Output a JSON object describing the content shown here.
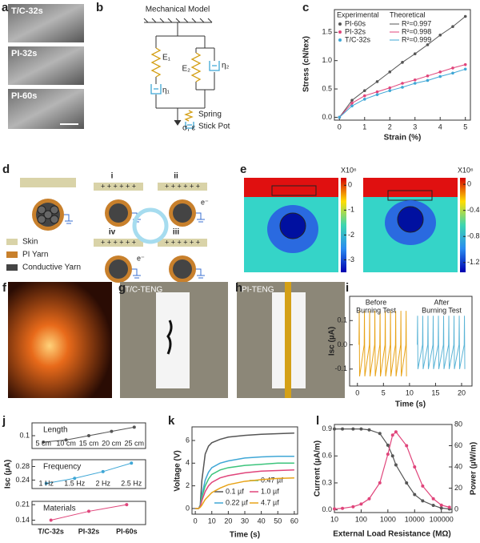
{
  "panel_labels": [
    "a",
    "b",
    "c",
    "d",
    "e",
    "f",
    "g",
    "h",
    "i",
    "j",
    "k",
    "l"
  ],
  "panel_a": {
    "labels": [
      "T/C-32s",
      "PI-32s",
      "PI-60s"
    ]
  },
  "panel_b": {
    "title": "Mechanical Model",
    "e1": "E₁",
    "e2": "E₂",
    "eta1": "η₁",
    "eta2": "η₂",
    "output": "σ, ε",
    "legend": [
      "Spring",
      "Stick Pot"
    ]
  },
  "panel_d": {
    "stages": [
      "i",
      "ii",
      "iii",
      "iv"
    ],
    "charges": "+ + + + + +",
    "electron": "e⁻",
    "legend": [
      "Skin",
      "PI Yarn",
      "Conductive Yarn"
    ]
  },
  "panel_e": {
    "colorbars": [
      {
        "unit": "X10⁶",
        "lim": [
          -3.5,
          0.3
        ],
        "ticks": [
          0,
          -1,
          -2,
          -3
        ]
      },
      {
        "unit": "X10⁶",
        "lim": [
          -1.35,
          0.1
        ],
        "ticks": [
          0,
          -0.4,
          -0.8,
          -1.2
        ]
      }
    ]
  },
  "panel_g": {
    "label": "T/C-TENG"
  },
  "panel_h": {
    "label": "PI-TENG"
  },
  "chart_data": [
    {
      "type": "line",
      "xlabel": "Strain (%)",
      "ylabel": "Stress (cN/tex)",
      "legend_titles": [
        "Experimental",
        "Theoretical"
      ],
      "x": [
        0,
        0.5,
        1,
        1.5,
        2,
        2.5,
        3,
        3.5,
        4,
        4.5,
        5
      ],
      "series": [
        {
          "name": "PI-60s",
          "color": "#555555",
          "fit_label": "R²=0.997",
          "values": [
            0,
            0.3,
            0.47,
            0.63,
            0.8,
            0.97,
            1.12,
            1.28,
            1.45,
            1.6,
            1.78
          ]
        },
        {
          "name": "PI-32s",
          "color": "#e0457b",
          "fit_label": "R²=0.998",
          "values": [
            0,
            0.25,
            0.38,
            0.45,
            0.52,
            0.6,
            0.66,
            0.73,
            0.8,
            0.87,
            0.93
          ]
        },
        {
          "name": "T/C-32s",
          "color": "#3fa7d6",
          "fit_label": "R²=0.999",
          "values": [
            0,
            0.2,
            0.32,
            0.4,
            0.47,
            0.53,
            0.6,
            0.65,
            0.72,
            0.78,
            0.85
          ]
        }
      ],
      "xlim": [
        -0.2,
        5.2
      ],
      "ylim": [
        -0.05,
        1.9
      ],
      "xticks": [
        0,
        1,
        2,
        3,
        4,
        5
      ],
      "yticks": [
        {
          "value": 0,
          "label": "0.0"
        },
        0.5,
        {
          "value": 1,
          "label": "1.0"
        },
        1.5
      ]
    },
    {
      "type": "line",
      "xlabel": "Time (s)",
      "ylabel": "Isc (µA)",
      "annotations": [
        "Before",
        "Burning Test",
        "After",
        "Burning Test"
      ],
      "series": [
        {
          "color": "#e8a317",
          "x": [
            0.3,
            0.35,
            0.42,
            1.3,
            1.35,
            1.42,
            2.3,
            2.35,
            2.42,
            3.3,
            3.35,
            3.42,
            4.3,
            4.35,
            4.42,
            5.3,
            5.35,
            5.42,
            6.3,
            6.35,
            6.42,
            7.3,
            7.35,
            7.42,
            8.3,
            8.35,
            8.42,
            9.3,
            9.35,
            9.42
          ],
          "values": [
            0,
            0.14,
            -0.13,
            0,
            0.14,
            -0.13,
            0,
            0.14,
            -0.13,
            0,
            0.14,
            -0.13,
            0,
            0.14,
            -0.13,
            0,
            0.14,
            -0.13,
            0,
            0.14,
            -0.13,
            0,
            0.14,
            -0.13,
            0,
            0.14,
            -0.13,
            0,
            0.14,
            -0.13
          ]
        },
        {
          "color": "#5ab4d6",
          "x": [
            11.5,
            11.55,
            11.62,
            12.5,
            12.55,
            12.62,
            13.5,
            13.55,
            13.62,
            14.5,
            14.55,
            14.62,
            15.5,
            15.55,
            15.62,
            16.5,
            16.55,
            16.62,
            17.5,
            17.55,
            17.62,
            18.5,
            18.55,
            18.62,
            19.5,
            19.55,
            19.62,
            20.5,
            20.55,
            20.62
          ],
          "values": [
            0,
            0.12,
            -0.1,
            0,
            0.12,
            -0.1,
            0,
            0.12,
            -0.1,
            0,
            0.12,
            -0.1,
            0,
            0.12,
            -0.1,
            0,
            0.12,
            -0.1,
            0,
            0.12,
            -0.1,
            0,
            0.12,
            -0.1,
            0,
            0.12,
            -0.1,
            0,
            0.12,
            -0.1
          ]
        }
      ],
      "xlim": [
        -1.5,
        22
      ],
      "ylim": [
        -0.17,
        0.2
      ],
      "xticks": [
        0,
        5,
        10,
        15,
        20
      ],
      "yticks": [
        -0.1,
        {
          "value": 0,
          "label": "0.0"
        },
        0.1
      ]
    },
    {
      "type": "line",
      "ylabel": "Isc (µA)",
      "subplots": [
        {
          "title": "Length",
          "categories": [
            "5 cm",
            "10 cm",
            "15 cm",
            "20 cm",
            "25 cm"
          ],
          "values": [
            0.085,
            0.09,
            0.1,
            0.11,
            0.12
          ],
          "color": "#555555",
          "ylim": [
            0.07,
            0.13
          ],
          "yticks": [
            0.1
          ]
        },
        {
          "title": "Frequency",
          "categories": [
            "1 Hz",
            "1.5 Hz",
            "2 Hz",
            "2.5 Hz"
          ],
          "values": [
            0.23,
            0.245,
            0.265,
            0.29
          ],
          "color": "#3fa7d6",
          "ylim": [
            0.215,
            0.3
          ],
          "yticks": [
            0.24,
            0.28
          ]
        },
        {
          "title": "Materials",
          "categories": [
            "T/C-32s",
            "PI-32s",
            "PI-60s"
          ],
          "values": [
            0.14,
            0.18,
            0.21
          ],
          "color": "#e0457b",
          "ylim": [
            0.12,
            0.225
          ],
          "yticks": [
            0.14,
            0.21
          ]
        }
      ]
    },
    {
      "type": "line",
      "xlabel": "Time (s)",
      "ylabel": "Voltage (V)",
      "x": [
        0,
        2,
        3,
        4,
        6,
        8,
        10,
        15,
        20,
        30,
        40,
        50,
        60
      ],
      "series": [
        {
          "name": "0.1 µf",
          "color": "#555555",
          "values": [
            0,
            0,
            0.3,
            2.5,
            4.8,
            5.5,
            5.8,
            6.1,
            6.3,
            6.45,
            6.55,
            6.6,
            6.65
          ]
        },
        {
          "name": "0.22 µf",
          "color": "#3fa7d6",
          "values": [
            0,
            0,
            0.2,
            1.2,
            2.5,
            3.2,
            3.6,
            4.0,
            4.2,
            4.45,
            4.55,
            4.6,
            4.6
          ]
        },
        {
          "name": "0.47 µf",
          "color": "#3cc47c",
          "values": [
            0,
            0,
            0.2,
            1.0,
            2.0,
            2.6,
            3.0,
            3.4,
            3.6,
            3.8,
            3.9,
            4.0,
            4.0
          ]
        },
        {
          "name": "1.0 µf",
          "color": "#e0457b",
          "values": [
            0,
            0,
            0.15,
            0.7,
            1.5,
            2.0,
            2.3,
            2.7,
            2.9,
            3.15,
            3.3,
            3.35,
            3.4
          ]
        },
        {
          "name": "4.7 µf",
          "color": "#e8a317",
          "values": [
            0,
            0,
            0.1,
            0.3,
            0.8,
            1.1,
            1.4,
            1.8,
            2.1,
            2.4,
            2.55,
            2.65,
            2.7
          ]
        }
      ],
      "xlim": [
        -2,
        62
      ],
      "ylim": [
        -0.5,
        7.2
      ],
      "xticks": [
        0,
        10,
        20,
        30,
        40,
        50,
        60
      ],
      "yticks": [
        0,
        2,
        4,
        6
      ]
    },
    {
      "type": "line",
      "xlabel": "External Load Resistance (MΩ)",
      "ylabel": "Current (µA/m)",
      "y2label": "Power (µW/m)",
      "xscale": "log",
      "x": [
        10,
        20,
        50,
        100,
        200,
        500,
        1000,
        1500,
        2000,
        5000,
        10000,
        20000,
        50000,
        100000,
        200000
      ],
      "series": [
        {
          "name": "Current",
          "color": "#555555",
          "values": [
            0.9,
            0.9,
            0.9,
            0.9,
            0.89,
            0.85,
            0.72,
            0.6,
            0.5,
            0.3,
            0.17,
            0.1,
            0.05,
            0.02,
            0.01
          ]
        },
        {
          "name": "Power",
          "color": "#e0457b",
          "axis": "y2",
          "values": [
            0.5,
            1,
            2.5,
            5,
            10,
            25,
            52,
            70,
            73,
            60,
            40,
            22,
            10,
            4,
            2
          ]
        }
      ],
      "xlim": [
        10,
        250000
      ],
      "ylim": [
        -0.03,
        0.95
      ],
      "y2lim": [
        -3,
        80
      ],
      "xticks": [
        10,
        100,
        1000,
        10000,
        100000
      ],
      "yticks": [
        {
          "value": 0,
          "label": "0.0"
        },
        0.3,
        0.6,
        0.9
      ],
      "y2ticks": [
        0,
        20,
        40,
        60,
        80
      ]
    }
  ]
}
